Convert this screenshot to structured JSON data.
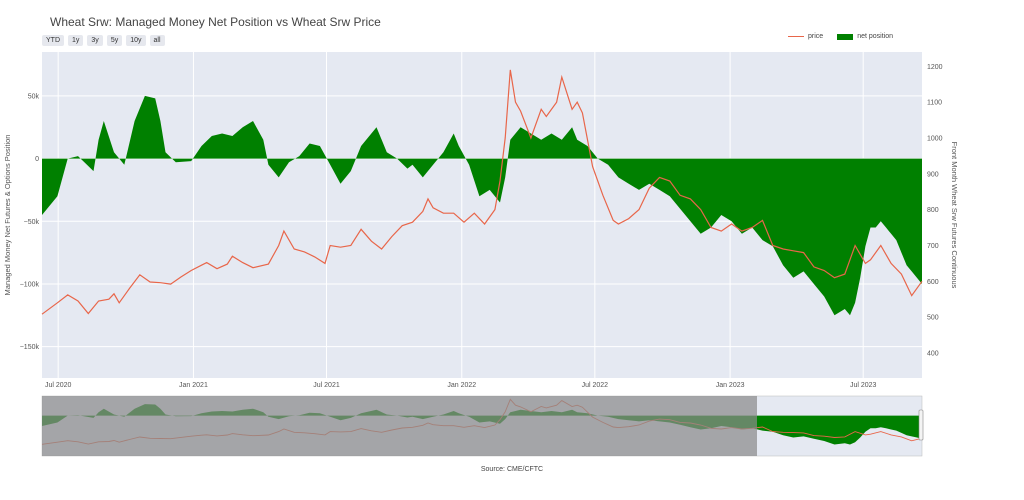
{
  "title": "Wheat Srw: Managed Money Net Position vs Wheat Srw Price",
  "range_buttons": [
    "YTD",
    "1y",
    "3y",
    "5y",
    "10y",
    "all"
  ],
  "legend": {
    "price": "price",
    "net_position": "net position"
  },
  "source": "Source: CME/CFTC",
  "colors": {
    "price": "#e8664a",
    "net_position": "#008000",
    "plot_bg": "#e5e9f2",
    "range_shade": "#8a8a8a"
  },
  "chart_data": {
    "type": "area",
    "xlabel": "",
    "ylabel_left": "Managed Money Net Futures & Options Position",
    "ylabel_right": "Front Month Wheat Srw Futures Continuous",
    "x_start": "2020-06-09",
    "x_end": "2023-09-19",
    "y_left_range": [
      -175000,
      85000
    ],
    "y_right_range": [
      330,
      1240
    ],
    "x_ticks": [
      "Jul 2020",
      "Jan 2021",
      "Jul 2021",
      "Jan 2022",
      "Jul 2022",
      "Jan 2023",
      "Jul 2023"
    ],
    "y_left_ticks": [
      "50k",
      "0",
      "−50k",
      "−100k",
      "−150k"
    ],
    "y_left_tick_values": [
      50000,
      0,
      -50000,
      -100000,
      -150000
    ],
    "y_right_ticks": [
      "1200",
      "1100",
      "1000",
      "900",
      "800",
      "700",
      "600",
      "500",
      "400"
    ],
    "y_right_tick_values": [
      1200,
      1100,
      1000,
      900,
      800,
      700,
      600,
      500,
      400
    ],
    "series": [
      {
        "name": "net position",
        "axis": "left",
        "points": [
          [
            "2020-06-09",
            -45000
          ],
          [
            "2020-06-30",
            -30000
          ],
          [
            "2020-07-14",
            0
          ],
          [
            "2020-07-28",
            2000
          ],
          [
            "2020-08-04",
            -2000
          ],
          [
            "2020-08-18",
            -10000
          ],
          [
            "2020-08-25",
            15000
          ],
          [
            "2020-09-01",
            30000
          ],
          [
            "2020-09-15",
            5000
          ],
          [
            "2020-09-29",
            -5000
          ],
          [
            "2020-10-13",
            30000
          ],
          [
            "2020-10-27",
            50000
          ],
          [
            "2020-11-10",
            48000
          ],
          [
            "2020-11-17",
            30000
          ],
          [
            "2020-11-24",
            5000
          ],
          [
            "2020-12-08",
            -3000
          ],
          [
            "2020-12-29",
            -2000
          ],
          [
            "2021-01-12",
            10000
          ],
          [
            "2021-01-26",
            18000
          ],
          [
            "2021-02-09",
            20000
          ],
          [
            "2021-02-23",
            18000
          ],
          [
            "2021-03-09",
            25000
          ],
          [
            "2021-03-23",
            30000
          ],
          [
            "2021-04-06",
            15000
          ],
          [
            "2021-04-13",
            -5000
          ],
          [
            "2021-04-27",
            -15000
          ],
          [
            "2021-05-11",
            -3000
          ],
          [
            "2021-05-25",
            2000
          ],
          [
            "2021-06-08",
            12000
          ],
          [
            "2021-06-22",
            10000
          ],
          [
            "2021-07-06",
            -5000
          ],
          [
            "2021-07-20",
            -20000
          ],
          [
            "2021-08-03",
            -10000
          ],
          [
            "2021-08-17",
            10000
          ],
          [
            "2021-09-07",
            25000
          ],
          [
            "2021-09-21",
            5000
          ],
          [
            "2021-10-05",
            0
          ],
          [
            "2021-10-19",
            -8000
          ],
          [
            "2021-10-26",
            -5000
          ],
          [
            "2021-11-09",
            -15000
          ],
          [
            "2021-11-23",
            -5000
          ],
          [
            "2021-12-07",
            5000
          ],
          [
            "2021-12-21",
            20000
          ],
          [
            "2021-12-28",
            10000
          ],
          [
            "2022-01-11",
            -5000
          ],
          [
            "2022-01-25",
            -30000
          ],
          [
            "2022-02-08",
            -25000
          ],
          [
            "2022-02-22",
            -35000
          ],
          [
            "2022-03-01",
            -15000
          ],
          [
            "2022-03-08",
            15000
          ],
          [
            "2022-03-22",
            25000
          ],
          [
            "2022-04-05",
            20000
          ],
          [
            "2022-04-19",
            15000
          ],
          [
            "2022-05-03",
            20000
          ],
          [
            "2022-05-17",
            15000
          ],
          [
            "2022-05-31",
            25000
          ],
          [
            "2022-06-07",
            15000
          ],
          [
            "2022-06-21",
            10000
          ],
          [
            "2022-07-05",
            0
          ],
          [
            "2022-07-19",
            -5000
          ],
          [
            "2022-08-02",
            -15000
          ],
          [
            "2022-08-16",
            -20000
          ],
          [
            "2022-08-30",
            -25000
          ],
          [
            "2022-09-13",
            -20000
          ],
          [
            "2022-09-27",
            -25000
          ],
          [
            "2022-10-11",
            -30000
          ],
          [
            "2022-10-25",
            -40000
          ],
          [
            "2022-11-08",
            -50000
          ],
          [
            "2022-11-22",
            -60000
          ],
          [
            "2022-12-06",
            -55000
          ],
          [
            "2022-12-20",
            -45000
          ],
          [
            "2023-01-03",
            -50000
          ],
          [
            "2023-01-17",
            -60000
          ],
          [
            "2023-01-31",
            -55000
          ],
          [
            "2023-02-14",
            -65000
          ],
          [
            "2023-02-28",
            -70000
          ],
          [
            "2023-03-14",
            -85000
          ],
          [
            "2023-03-28",
            -95000
          ],
          [
            "2023-04-11",
            -90000
          ],
          [
            "2023-04-25",
            -100000
          ],
          [
            "2023-05-09",
            -110000
          ],
          [
            "2023-05-23",
            -125000
          ],
          [
            "2023-06-06",
            -120000
          ],
          [
            "2023-06-13",
            -125000
          ],
          [
            "2023-06-20",
            -115000
          ],
          [
            "2023-06-27",
            -95000
          ],
          [
            "2023-07-04",
            -70000
          ],
          [
            "2023-07-11",
            -55000
          ],
          [
            "2023-07-18",
            -55000
          ],
          [
            "2023-07-25",
            -50000
          ],
          [
            "2023-08-01",
            -55000
          ],
          [
            "2023-08-08",
            -60000
          ],
          [
            "2023-08-15",
            -65000
          ],
          [
            "2023-08-22",
            -75000
          ],
          [
            "2023-08-29",
            -85000
          ],
          [
            "2023-09-05",
            -90000
          ],
          [
            "2023-09-12",
            -95000
          ],
          [
            "2023-09-19",
            -100000
          ]
        ]
      },
      {
        "name": "price",
        "axis": "right",
        "points": [
          [
            "2020-06-09",
            508
          ],
          [
            "2020-06-30",
            540
          ],
          [
            "2020-07-14",
            562
          ],
          [
            "2020-07-28",
            545
          ],
          [
            "2020-08-11",
            510
          ],
          [
            "2020-08-25",
            545
          ],
          [
            "2020-09-08",
            550
          ],
          [
            "2020-09-15",
            565
          ],
          [
            "2020-09-22",
            540
          ],
          [
            "2020-10-06",
            580
          ],
          [
            "2020-10-20",
            618
          ],
          [
            "2020-11-03",
            598
          ],
          [
            "2020-11-17",
            596
          ],
          [
            "2020-12-01",
            592
          ],
          [
            "2020-12-15",
            612
          ],
          [
            "2020-12-29",
            630
          ],
          [
            "2021-01-12",
            645
          ],
          [
            "2021-01-19",
            652
          ],
          [
            "2021-02-02",
            635
          ],
          [
            "2021-02-16",
            648
          ],
          [
            "2021-02-23",
            670
          ],
          [
            "2021-03-09",
            652
          ],
          [
            "2021-03-23",
            638
          ],
          [
            "2021-04-13",
            648
          ],
          [
            "2021-04-27",
            700
          ],
          [
            "2021-05-04",
            740
          ],
          [
            "2021-05-18",
            690
          ],
          [
            "2021-06-01",
            682
          ],
          [
            "2021-06-15",
            668
          ],
          [
            "2021-06-29",
            650
          ],
          [
            "2021-07-06",
            700
          ],
          [
            "2021-07-20",
            695
          ],
          [
            "2021-08-03",
            700
          ],
          [
            "2021-08-17",
            745
          ],
          [
            "2021-08-31",
            712
          ],
          [
            "2021-09-14",
            690
          ],
          [
            "2021-09-28",
            725
          ],
          [
            "2021-10-12",
            755
          ],
          [
            "2021-10-26",
            765
          ],
          [
            "2021-11-09",
            795
          ],
          [
            "2021-11-16",
            830
          ],
          [
            "2021-11-23",
            805
          ],
          [
            "2021-12-07",
            790
          ],
          [
            "2021-12-21",
            790
          ],
          [
            "2022-01-04",
            765
          ],
          [
            "2022-01-18",
            790
          ],
          [
            "2022-02-01",
            760
          ],
          [
            "2022-02-15",
            800
          ],
          [
            "2022-02-22",
            880
          ],
          [
            "2022-03-01",
            1000
          ],
          [
            "2022-03-08",
            1190
          ],
          [
            "2022-03-15",
            1100
          ],
          [
            "2022-03-22",
            1075
          ],
          [
            "2022-04-05",
            1000
          ],
          [
            "2022-04-19",
            1080
          ],
          [
            "2022-04-26",
            1060
          ],
          [
            "2022-05-10",
            1100
          ],
          [
            "2022-05-17",
            1170
          ],
          [
            "2022-05-31",
            1080
          ],
          [
            "2022-06-07",
            1100
          ],
          [
            "2022-06-14",
            1070
          ],
          [
            "2022-06-28",
            920
          ],
          [
            "2022-07-12",
            840
          ],
          [
            "2022-07-26",
            770
          ],
          [
            "2022-08-02",
            760
          ],
          [
            "2022-08-16",
            775
          ],
          [
            "2022-08-30",
            800
          ],
          [
            "2022-09-13",
            860
          ],
          [
            "2022-09-27",
            890
          ],
          [
            "2022-10-11",
            880
          ],
          [
            "2022-10-25",
            840
          ],
          [
            "2022-11-08",
            830
          ],
          [
            "2022-11-22",
            800
          ],
          [
            "2022-12-06",
            750
          ],
          [
            "2022-12-20",
            740
          ],
          [
            "2023-01-03",
            760
          ],
          [
            "2023-01-17",
            740
          ],
          [
            "2023-01-31",
            750
          ],
          [
            "2023-02-14",
            770
          ],
          [
            "2023-02-28",
            700
          ],
          [
            "2023-03-14",
            690
          ],
          [
            "2023-03-28",
            685
          ],
          [
            "2023-04-11",
            680
          ],
          [
            "2023-04-25",
            640
          ],
          [
            "2023-05-09",
            630
          ],
          [
            "2023-05-23",
            610
          ],
          [
            "2023-06-06",
            620
          ],
          [
            "2023-06-20",
            700
          ],
          [
            "2023-07-04",
            650
          ],
          [
            "2023-07-11",
            660
          ],
          [
            "2023-07-25",
            700
          ],
          [
            "2023-08-08",
            650
          ],
          [
            "2023-08-22",
            620
          ],
          [
            "2023-09-05",
            560
          ],
          [
            "2023-09-19",
            600
          ]
        ]
      }
    ]
  }
}
